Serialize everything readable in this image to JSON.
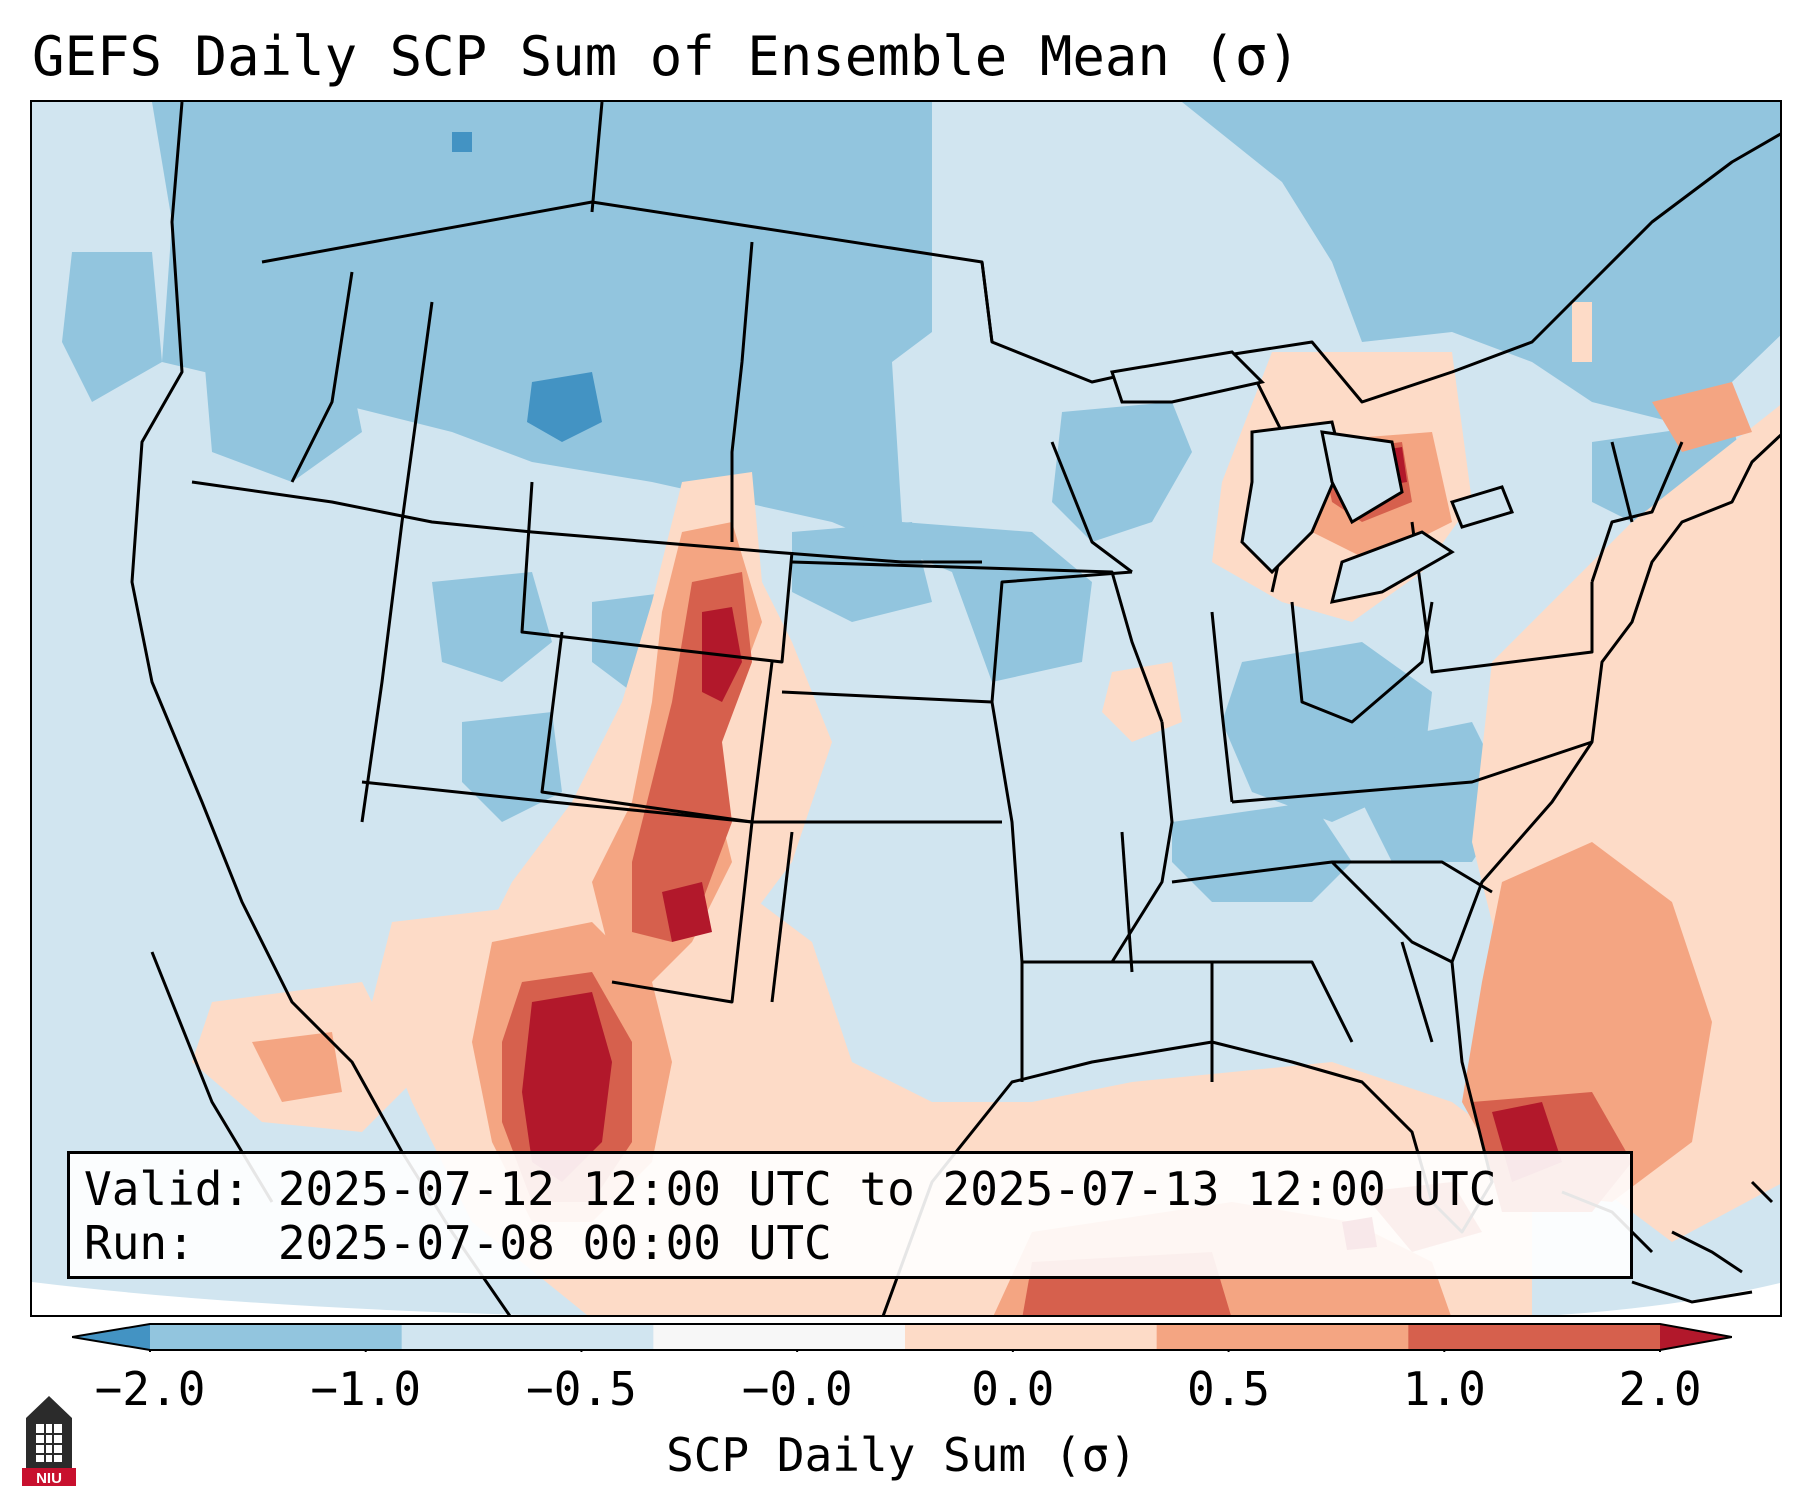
{
  "title": "GEFS Daily SCP Sum of Ensemble Mean (σ)",
  "info": {
    "valid_line": "Valid: 2025-07-12 12:00 UTC to 2025-07-13 12:00 UTC",
    "run_line": "Run:   2025-07-08 00:00 UTC"
  },
  "colorbar": {
    "label": "SCP Daily Sum (σ)",
    "ticks": [
      "−2.0",
      "−1.0",
      "−0.5",
      "−0.0",
      "0.0",
      "0.5",
      "1.0",
      "2.0"
    ],
    "colors": [
      "#4393c3",
      "#92c5de",
      "#d1e5f0",
      "#f7f7f7",
      "#fddbc7",
      "#f4a582",
      "#d6604d",
      "#b2182b"
    ]
  },
  "logo": {
    "text": "NIU"
  }
}
